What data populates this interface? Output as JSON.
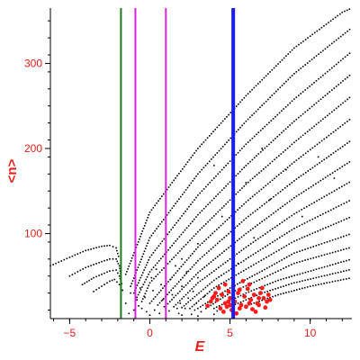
{
  "chart_data": {
    "type": "scatter",
    "title": "",
    "xlabel": "E",
    "ylabel": "<n>",
    "xlim": [
      -6.2,
      12.6
    ],
    "ylim": [
      0,
      365
    ],
    "xticks": [
      -5,
      0,
      5,
      10
    ],
    "yticks": [
      100,
      200,
      300
    ],
    "grid": false,
    "legend": "none",
    "vertical_lines": [
      {
        "x": -1.8,
        "color": "#1f7a1f",
        "width": 2
      },
      {
        "x": -0.9,
        "color": "#e020e0",
        "width": 2
      },
      {
        "x": 1.0,
        "color": "#e020e0",
        "width": 2
      },
      {
        "x": 5.2,
        "color": "#1a1aff",
        "width": 4
      }
    ],
    "branches": [
      {
        "pts": [
          [
            -1.5,
            52
          ],
          [
            0,
            125
          ],
          [
            3,
            200
          ],
          [
            6,
            262
          ],
          [
            9,
            318
          ],
          [
            12,
            360
          ],
          [
            12.6,
            365
          ]
        ]
      },
      {
        "pts": [
          [
            -1.2,
            38
          ],
          [
            0,
            95
          ],
          [
            3,
            170
          ],
          [
            6,
            232
          ],
          [
            9,
            288
          ],
          [
            12.6,
            342
          ]
        ]
      },
      {
        "pts": [
          [
            -1.0,
            30
          ],
          [
            0,
            72
          ],
          [
            3,
            145
          ],
          [
            6,
            205
          ],
          [
            9,
            258
          ],
          [
            12.6,
            314
          ]
        ]
      },
      {
        "pts": [
          [
            -0.8,
            25
          ],
          [
            0,
            55
          ],
          [
            3,
            122
          ],
          [
            6,
            180
          ],
          [
            9,
            232
          ],
          [
            12.6,
            288
          ]
        ]
      },
      {
        "pts": [
          [
            -0.5,
            20
          ],
          [
            0,
            42
          ],
          [
            3,
            102
          ],
          [
            6,
            158
          ],
          [
            9,
            207
          ],
          [
            12.6,
            262
          ]
        ]
      },
      {
        "pts": [
          [
            0,
            18
          ],
          [
            3,
            84
          ],
          [
            6,
            137
          ],
          [
            9,
            184
          ],
          [
            12.6,
            236
          ]
        ]
      },
      {
        "pts": [
          [
            0.5,
            16
          ],
          [
            3,
            68
          ],
          [
            6,
            118
          ],
          [
            9,
            162
          ],
          [
            12.6,
            210
          ]
        ]
      },
      {
        "pts": [
          [
            1,
            15
          ],
          [
            3,
            54
          ],
          [
            6,
            100
          ],
          [
            9,
            142
          ],
          [
            12.6,
            186
          ]
        ]
      },
      {
        "pts": [
          [
            1.5,
            14
          ],
          [
            3,
            42
          ],
          [
            6,
            84
          ],
          [
            9,
            123
          ],
          [
            12.6,
            162
          ]
        ]
      },
      {
        "pts": [
          [
            2,
            13
          ],
          [
            4,
            45
          ],
          [
            6,
            70
          ],
          [
            9,
            106
          ],
          [
            12.6,
            140
          ]
        ]
      },
      {
        "pts": [
          [
            2.5,
            12
          ],
          [
            4,
            36
          ],
          [
            6,
            58
          ],
          [
            9,
            91
          ],
          [
            12.6,
            120
          ]
        ]
      },
      {
        "pts": [
          [
            3,
            12
          ],
          [
            5,
            36
          ],
          [
            7,
            56
          ],
          [
            9,
            77
          ],
          [
            12.6,
            100
          ]
        ]
      },
      {
        "pts": [
          [
            3.5,
            12
          ],
          [
            5,
            30
          ],
          [
            7,
            47
          ],
          [
            9,
            65
          ],
          [
            12.6,
            84
          ]
        ]
      },
      {
        "pts": [
          [
            4,
            12
          ],
          [
            6,
            30
          ],
          [
            8,
            45
          ],
          [
            12.6,
            70
          ]
        ]
      },
      {
        "pts": [
          [
            5,
            14
          ],
          [
            7,
            30
          ],
          [
            9,
            42
          ],
          [
            12.6,
            58
          ]
        ]
      },
      {
        "pts": [
          [
            6,
            15
          ],
          [
            8,
            28
          ],
          [
            10,
            38
          ],
          [
            12.6,
            48
          ]
        ]
      },
      {
        "pts": [
          [
            -6.2,
            62
          ],
          [
            -5,
            72
          ],
          [
            -4,
            80
          ],
          [
            -3,
            85
          ],
          [
            -2.5,
            86
          ],
          [
            -2.1,
            83
          ],
          [
            -1.9,
            70
          ]
        ]
      },
      {
        "pts": [
          [
            -5.0,
            50
          ],
          [
            -4,
            60
          ],
          [
            -3,
            67
          ],
          [
            -2.5,
            70
          ],
          [
            -2.1,
            70
          ],
          [
            -1.9,
            62
          ],
          [
            -1.8,
            50
          ]
        ]
      },
      {
        "pts": [
          [
            -4.2,
            40
          ],
          [
            -3.5,
            48
          ],
          [
            -3,
            52
          ],
          [
            -2.5,
            56
          ],
          [
            -2.1,
            57
          ],
          [
            -1.9,
            50
          ],
          [
            -1.7,
            38
          ]
        ]
      },
      {
        "pts": [
          [
            -3.5,
            32
          ],
          [
            -3,
            38
          ],
          [
            -2.5,
            44
          ],
          [
            -2.2,
            46
          ],
          [
            -1.9,
            40
          ],
          [
            -1.6,
            30
          ]
        ]
      }
    ],
    "background_points": [
      [
        -1.2,
        30
      ],
      [
        -0.8,
        22
      ],
      [
        -0.5,
        12
      ],
      [
        -0.2,
        8
      ],
      [
        0.3,
        10
      ],
      [
        0.6,
        6
      ],
      [
        1.2,
        9
      ],
      [
        1.8,
        6
      ],
      [
        2.2,
        12
      ],
      [
        2.6,
        5
      ],
      [
        3.2,
        8
      ],
      [
        3.6,
        14
      ],
      [
        -0.3,
        25
      ],
      [
        0.2,
        33
      ],
      [
        0.8,
        22
      ],
      [
        1.4,
        28
      ],
      [
        1.9,
        18
      ],
      [
        2.4,
        24
      ],
      [
        2.9,
        18
      ],
      [
        -1.5,
        18
      ],
      [
        -1.0,
        10
      ],
      [
        -0.6,
        36
      ],
      [
        0.1,
        48
      ],
      [
        0.7,
        40
      ],
      [
        1.3,
        46
      ],
      [
        2.0,
        38
      ],
      [
        2.7,
        32
      ],
      [
        3.4,
        26
      ],
      [
        -0.9,
        45
      ],
      [
        0.4,
        58
      ],
      [
        1.6,
        62
      ],
      [
        2.3,
        55
      ],
      [
        3.0,
        48
      ],
      [
        -1.3,
        6
      ],
      [
        0.0,
        4
      ],
      [
        1.0,
        3
      ],
      [
        2.0,
        4
      ],
      [
        3.0,
        3
      ],
      [
        4.0,
        5
      ],
      [
        -0.7,
        15
      ],
      [
        0.9,
        14
      ],
      [
        1.7,
        12
      ],
      [
        2.8,
        10
      ],
      [
        3.8,
        20
      ],
      [
        4.2,
        9
      ],
      [
        1.0,
        55
      ],
      [
        2.0,
        70
      ],
      [
        3.0,
        88
      ],
      [
        4.5,
        120
      ],
      [
        5.5,
        65
      ],
      [
        6.5,
        95
      ],
      [
        7.5,
        140
      ],
      [
        8.5,
        175
      ],
      [
        9.5,
        120
      ],
      [
        10.5,
        190
      ],
      [
        11.5,
        165
      ],
      [
        6.0,
        160
      ],
      [
        7.0,
        200
      ],
      [
        4.0,
        180
      ]
    ],
    "red_points": [
      [
        4.2,
        22
      ],
      [
        4.5,
        28
      ],
      [
        4.7,
        18
      ],
      [
        4.9,
        32
      ],
      [
        5.0,
        24
      ],
      [
        5.3,
        20
      ],
      [
        5.5,
        30
      ],
      [
        5.7,
        16
      ],
      [
        5.9,
        26
      ],
      [
        6.1,
        35
      ],
      [
        6.3,
        22
      ],
      [
        6.5,
        28
      ],
      [
        6.7,
        18
      ],
      [
        6.9,
        30
      ],
      [
        7.1,
        24
      ],
      [
        7.3,
        20
      ],
      [
        4.4,
        12
      ],
      [
        4.8,
        14
      ],
      [
        5.1,
        10
      ],
      [
        5.6,
        12
      ],
      [
        6.0,
        14
      ],
      [
        6.4,
        11
      ],
      [
        6.8,
        16
      ],
      [
        7.2,
        13
      ],
      [
        4.0,
        26
      ],
      [
        3.8,
        20
      ],
      [
        4.3,
        36
      ],
      [
        5.2,
        38
      ],
      [
        6.2,
        40
      ],
      [
        7.0,
        36
      ],
      [
        7.4,
        28
      ],
      [
        3.6,
        15
      ],
      [
        4.6,
        8
      ],
      [
        5.4,
        6
      ],
      [
        6.6,
        8
      ],
      [
        5.8,
        44
      ],
      [
        4.1,
        30
      ],
      [
        6.8,
        24
      ],
      [
        5.0,
        16
      ],
      [
        6.2,
        18
      ],
      [
        4.9,
        20
      ],
      [
        5.6,
        34
      ],
      [
        7.5,
        22
      ],
      [
        3.9,
        24
      ],
      [
        4.7,
        40
      ]
    ]
  }
}
